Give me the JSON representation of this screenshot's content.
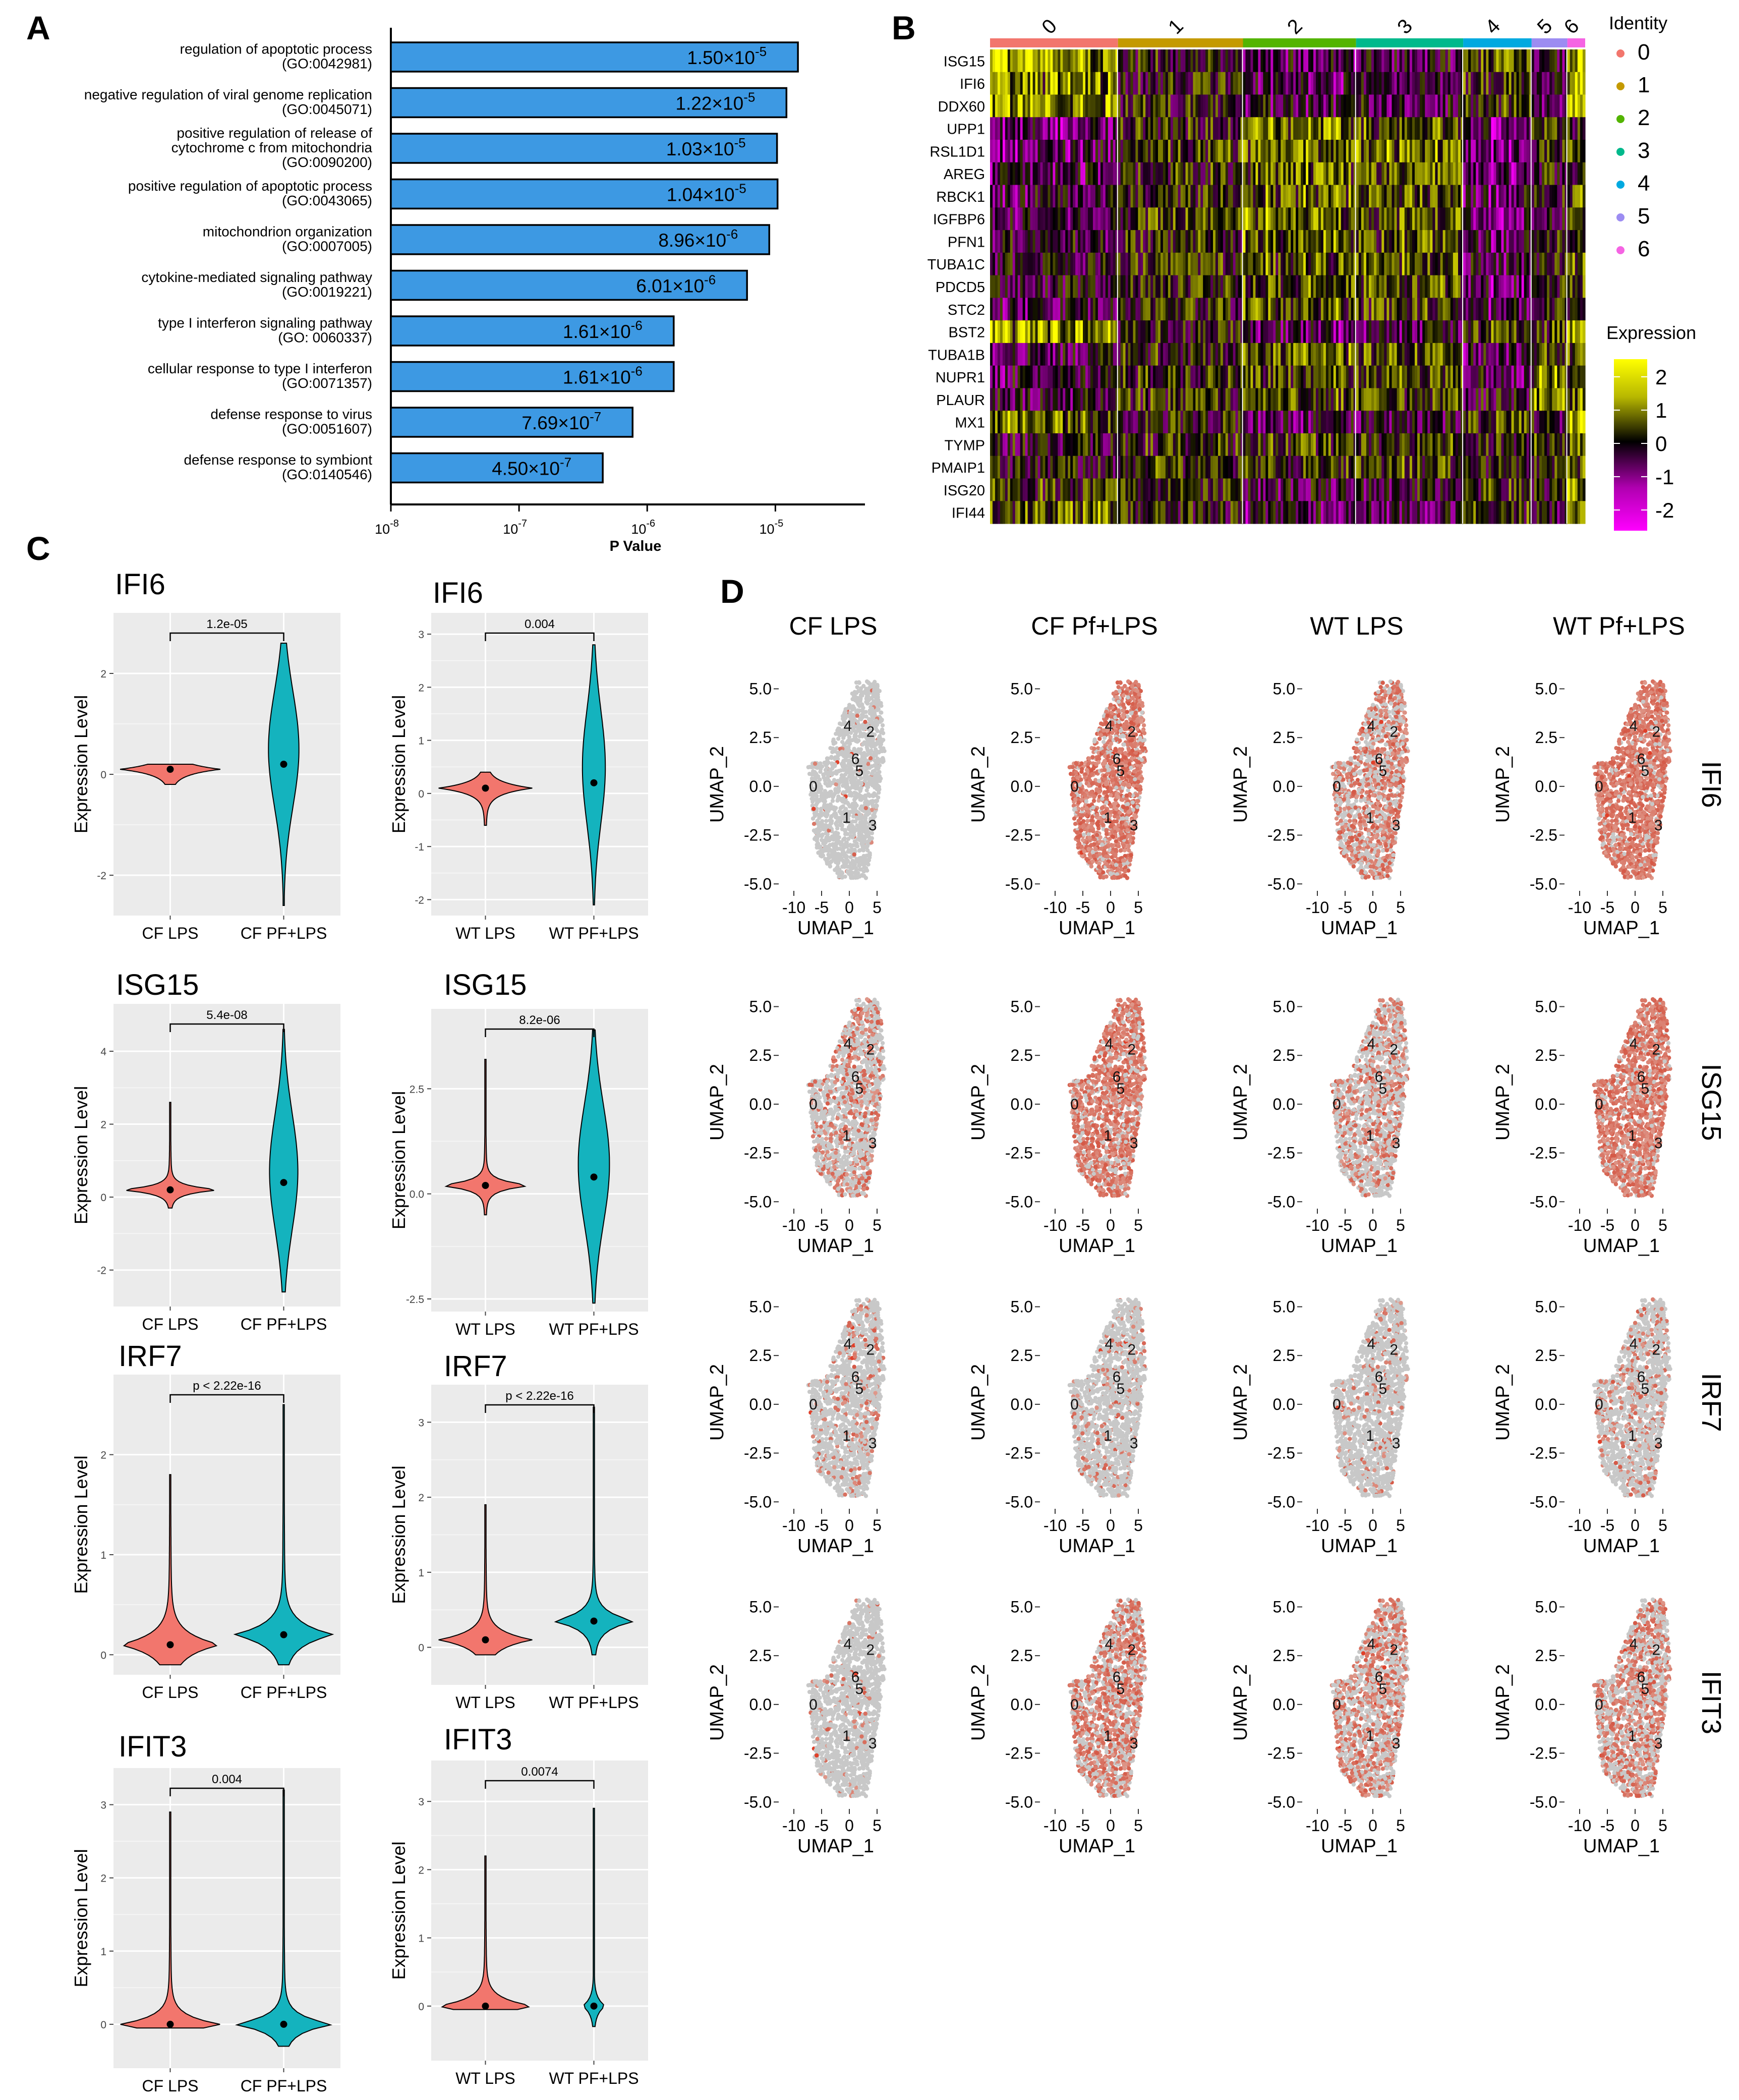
{
  "panel_labels": {
    "a": "A",
    "b": "B",
    "c": "C",
    "d": "D"
  },
  "chart_data": [
    {
      "id": "A",
      "type": "bar",
      "orientation": "horizontal",
      "xscale": "log",
      "xlabel": "P Value",
      "xlim": [
        1e-08,
        5e-05
      ],
      "xticks": [
        {
          "value": 1e-08,
          "base": "10",
          "exp": "-8"
        },
        {
          "value": 1e-07,
          "base": "10",
          "exp": "-7"
        },
        {
          "value": 1e-06,
          "base": "10",
          "exp": "-6"
        },
        {
          "value": 1e-05,
          "base": "10",
          "exp": "-5"
        }
      ],
      "bar_color": "#3d99e3",
      "categories": [
        {
          "lines": [
            "regulation of apoptotic process",
            "(GO:0042981)"
          ]
        },
        {
          "lines": [
            "negative regulation of viral genome replication",
            "(GO:0045071)"
          ]
        },
        {
          "lines": [
            "positive regulation of release of",
            "cytochrome c from mitochondria",
            "(GO:0090200)"
          ]
        },
        {
          "lines": [
            "positive regulation of apoptotic process",
            "(GO:0043065)"
          ]
        },
        {
          "lines": [
            "mitochondrion organization",
            "(GO:0007005)"
          ]
        },
        {
          "lines": [
            "cytokine-mediated signaling pathway",
            "(GO:0019221)"
          ]
        },
        {
          "lines": [
            "type I interferon signaling pathway",
            "(GO: 0060337)"
          ]
        },
        {
          "lines": [
            "cellular response to type I interferon",
            "(GO:0071357)"
          ]
        },
        {
          "lines": [
            "defense response to virus",
            "(GO:0051607)"
          ]
        },
        {
          "lines": [
            "defense response to symbiont",
            "(GO:0140546)"
          ]
        }
      ],
      "values": [
        1.5e-05,
        1.22e-05,
        1.03e-05,
        1.04e-05,
        8.96e-06,
        6.01e-06,
        1.61e-06,
        1.61e-06,
        7.69e-07,
        4.5e-07
      ],
      "value_labels": [
        {
          "mant": "1.50×10",
          "exp": "-5"
        },
        {
          "mant": "1.22×10",
          "exp": "-5"
        },
        {
          "mant": "1.03×10",
          "exp": "-5"
        },
        {
          "mant": "1.04×10",
          "exp": "-5"
        },
        {
          "mant": "8.96×10",
          "exp": "-6"
        },
        {
          "mant": "6.01×10",
          "exp": "-6"
        },
        {
          "mant": "1.61×10",
          "exp": "-6"
        },
        {
          "mant": "1.61×10",
          "exp": "-6"
        },
        {
          "mant": "7.69×10",
          "exp": "-7"
        },
        {
          "mant": "4.50×10",
          "exp": "-7"
        }
      ]
    },
    {
      "id": "B",
      "type": "heatmap",
      "genes": [
        "ISG15",
        "IFI6",
        "DDX60",
        "UPP1",
        "RSL1D1",
        "AREG",
        "RBCK1",
        "IGFBP6",
        "PFN1",
        "TUBA1C",
        "PDCD5",
        "STC2",
        "BST2",
        "TUBA1B",
        "NUPR1",
        "PLAUR",
        "MX1",
        "TYMP",
        "PMAIP1",
        "ISG20",
        "IFI44"
      ],
      "clusters": [
        {
          "label": "0",
          "color": "#f2766d",
          "fraction": 0.215
        },
        {
          "label": "1",
          "color": "#c49a00",
          "fraction": 0.21
        },
        {
          "label": "2",
          "color": "#53b400",
          "fraction": 0.19
        },
        {
          "label": "3",
          "color": "#00b98c",
          "fraction": 0.18
        },
        {
          "label": "4",
          "color": "#00a9e0",
          "fraction": 0.115
        },
        {
          "label": "5",
          "color": "#9c8cf2",
          "fraction": 0.06
        },
        {
          "label": "6",
          "color": "#f564e3",
          "fraction": 0.03
        }
      ],
      "cluster_tendency": [
        [
          1.1,
          0.9,
          0.9,
          -0.7,
          -0.6,
          -0.5,
          -0.4,
          -0.5,
          -0.3,
          -0.3,
          -0.3,
          -0.5,
          1.0,
          -0.3,
          -0.4,
          -0.3,
          0.8,
          -0.2,
          -0.1,
          0.3,
          0.6
        ],
        [
          0.1,
          0.0,
          0.1,
          0.2,
          0.3,
          0.2,
          0.2,
          0.3,
          0.2,
          0.2,
          0.3,
          0.1,
          0.1,
          0.2,
          0.2,
          0.2,
          0.0,
          0.2,
          0.3,
          0.1,
          0.0
        ],
        [
          -0.5,
          -0.6,
          -0.4,
          0.8,
          0.7,
          0.7,
          0.6,
          0.7,
          0.6,
          0.5,
          0.5,
          0.6,
          -0.6,
          0.6,
          0.4,
          0.4,
          -0.5,
          0.3,
          0.3,
          -0.4,
          -0.5
        ],
        [
          -0.3,
          -0.4,
          -0.3,
          0.5,
          0.6,
          0.5,
          0.5,
          0.5,
          0.5,
          0.5,
          0.5,
          0.4,
          -0.4,
          0.5,
          0.4,
          0.4,
          -0.4,
          0.3,
          0.3,
          -0.3,
          -0.4
        ],
        [
          0.5,
          0.2,
          0.3,
          -0.8,
          -0.7,
          -0.7,
          -0.6,
          -0.7,
          -0.5,
          -0.5,
          -0.6,
          -0.6,
          0.4,
          -0.5,
          -0.4,
          -0.2,
          0.4,
          0.1,
          0.0,
          0.2,
          0.3
        ],
        [
          -0.3,
          -0.4,
          -0.3,
          0.2,
          0.1,
          0.0,
          0.1,
          -0.1,
          0.2,
          0.1,
          0.0,
          -0.1,
          0.3,
          0.2,
          0.8,
          0.6,
          -0.3,
          0.4,
          0.2,
          0.0,
          -0.3
        ],
        [
          1.6,
          1.6,
          1.3,
          -0.2,
          0.3,
          0.2,
          0.5,
          0.1,
          0.6,
          0.6,
          0.5,
          0.4,
          1.6,
          0.6,
          0.8,
          1.0,
          1.5,
          1.2,
          0.9,
          1.4,
          1.5
        ]
      ],
      "identity_title": "Identity",
      "expression_title": "Expression",
      "colorbar_ticks": [
        "2",
        "1",
        "0",
        "-1",
        "-2"
      ]
    },
    {
      "id": "C",
      "type": "violin",
      "ylabel": "Expression Level",
      "colors": {
        "lps": "#f2766d",
        "pf": "#14b3be"
      },
      "panels": [
        {
          "gene": "IFI6",
          "pval": "1.2e-05",
          "groups": [
            "CF LPS",
            "CF PF+LPS"
          ],
          "ylim": [
            -2.8,
            3.2
          ],
          "yticks": [
            "2",
            "0",
            "-2"
          ],
          "ytick_values": [
            2,
            0,
            -2
          ],
          "lps": {
            "min": -0.2,
            "max": 0.2,
            "width": 0.92,
            "mean": 0.1,
            "skew": 0.0
          },
          "pf": {
            "min": -2.6,
            "max": 2.6,
            "width": 0.28,
            "mean": 0.2,
            "skew": 0.6
          }
        },
        {
          "gene": "IFI6",
          "pval": "0.004",
          "groups": [
            "WT LPS",
            "WT PF+LPS"
          ],
          "ylim": [
            -2.3,
            3.4
          ],
          "yticks": [
            "3",
            "2",
            "1",
            "0",
            "-1",
            "-2"
          ],
          "ytick_values": [
            3,
            2,
            1,
            0,
            -1,
            -2
          ],
          "lps": {
            "min": -0.6,
            "max": 0.4,
            "width": 0.9,
            "mean": 0.1,
            "skew": 0.0
          },
          "pf": {
            "min": -2.1,
            "max": 2.8,
            "width": 0.22,
            "mean": 0.2,
            "skew": 0.5
          }
        },
        {
          "gene": "ISG15",
          "pval": "5.4e-08",
          "groups": [
            "CF LPS",
            "CF PF+LPS"
          ],
          "ylim": [
            -3.0,
            5.3
          ],
          "yticks": [
            "4",
            "2",
            "0",
            "-2"
          ],
          "ytick_values": [
            4,
            2,
            0,
            -2
          ],
          "lps": {
            "min": -0.3,
            "max": 2.6,
            "width": 0.92,
            "mean": 0.2,
            "skew": 0.0
          },
          "pf": {
            "min": -2.6,
            "max": 4.6,
            "width": 0.26,
            "mean": 0.4,
            "skew": 0.5
          }
        },
        {
          "gene": "ISG15",
          "pval": "8.2e-06",
          "groups": [
            "WT LPS",
            "WT PF+LPS"
          ],
          "ylim": [
            -2.8,
            4.4
          ],
          "yticks": [
            "2.5",
            "0.0",
            "-2.5"
          ],
          "ytick_values": [
            2.5,
            0,
            -2.5
          ],
          "lps": {
            "min": -0.5,
            "max": 3.2,
            "width": 0.9,
            "mean": 0.2,
            "skew": 0.0
          },
          "pf": {
            "min": -2.6,
            "max": 3.9,
            "width": 0.3,
            "mean": 0.4,
            "skew": 0.4
          }
        },
        {
          "gene": "IRF7",
          "pval": "p < 2.22e-16",
          "groups": [
            "CF LPS",
            "CF PF+LPS"
          ],
          "ylim": [
            -0.2,
            2.8
          ],
          "yticks": [
            "2",
            "1",
            "0"
          ],
          "ytick_values": [
            2,
            1,
            0
          ],
          "lps": {
            "min": -0.1,
            "max": 1.8,
            "width": 0.92,
            "mean": 0.1,
            "skew": 0.0
          },
          "pf": {
            "min": -0.1,
            "max": 2.5,
            "width": 0.92,
            "mean": 0.2,
            "skew": 0.0
          }
        },
        {
          "gene": "IRF7",
          "pval": "p < 2.22e-16",
          "groups": [
            "WT LPS",
            "WT PF+LPS"
          ],
          "ylim": [
            -0.5,
            3.5
          ],
          "yticks": [
            "3",
            "2",
            "1",
            "0"
          ],
          "ytick_values": [
            3,
            2,
            1,
            0
          ],
          "lps": {
            "min": -0.1,
            "max": 1.9,
            "width": 0.9,
            "mean": 0.1,
            "skew": 0.0
          },
          "pf": {
            "min": -0.1,
            "max": 3.2,
            "width": 0.8,
            "mean": 0.35,
            "skew": 0.0
          }
        },
        {
          "gene": "IFIT3",
          "pval": "0.004",
          "groups": [
            "CF LPS",
            "CF PF+LPS"
          ],
          "ylim": [
            -0.6,
            3.5
          ],
          "yticks": [
            "3",
            "2",
            "1",
            "0"
          ],
          "ytick_values": [
            3,
            2,
            1,
            0
          ],
          "lps": {
            "min": -0.05,
            "max": 2.9,
            "width": 0.92,
            "mean": 0.0,
            "skew": 0.0
          },
          "pf": {
            "min": -0.3,
            "max": 3.2,
            "width": 0.92,
            "mean": 0.0,
            "skew": 0.0
          }
        },
        {
          "gene": "IFIT3",
          "pval": "0.0074",
          "groups": [
            "WT LPS",
            "WT PF+LPS"
          ],
          "ylim": [
            -0.8,
            3.6
          ],
          "yticks": [
            "3",
            "2",
            "1",
            "0"
          ],
          "ytick_values": [
            3,
            2,
            1,
            0
          ],
          "lps": {
            "min": -0.05,
            "max": 2.2,
            "width": 0.92,
            "mean": 0.0,
            "skew": 0.0
          },
          "pf": {
            "min": -0.3,
            "max": 2.9,
            "width": 0.22,
            "mean": 0.0,
            "skew": 0.0
          }
        }
      ]
    },
    {
      "id": "D",
      "type": "scatter",
      "subtype": "umap-feature-plot",
      "xlabel": "UMAP_1",
      "ylabel": "UMAP_2",
      "xlim": [
        -12,
        8
      ],
      "ylim": [
        -5.2,
        5.4
      ],
      "xticks": [
        "-10",
        "-5",
        "0",
        "5"
      ],
      "xtick_values": [
        -10,
        -5,
        0,
        5
      ],
      "yticks": [
        "5.0",
        "2.5",
        "0.0",
        "-2.5",
        "-5.0"
      ],
      "ytick_values": [
        5.0,
        2.5,
        0.0,
        -2.5,
        -5.0
      ],
      "conditions": [
        "CF LPS",
        "CF Pf+LPS",
        "WT LPS",
        "WT Pf+LPS"
      ],
      "genes": [
        "IFI6",
        "ISG15",
        "IRF7",
        "IFIT3"
      ],
      "cluster_labels": [
        {
          "label": "0",
          "x": -6.5,
          "y": 0.0
        },
        {
          "label": "1",
          "x": -0.5,
          "y": -1.6
        },
        {
          "label": "2",
          "x": 3.8,
          "y": 2.8
        },
        {
          "label": "3",
          "x": 4.2,
          "y": -2.0
        },
        {
          "label": "4",
          "x": -0.3,
          "y": 3.1
        },
        {
          "label": "5",
          "x": 1.8,
          "y": 0.8
        },
        {
          "label": "6",
          "x": 1.1,
          "y": 1.4
        }
      ],
      "expressing_fraction": [
        [
          0.03,
          0.85,
          0.55,
          0.9
        ],
        [
          0.35,
          0.8,
          0.4,
          0.85
        ],
        [
          0.15,
          0.15,
          0.12,
          0.22
        ],
        [
          0.05,
          0.6,
          0.5,
          0.55
        ]
      ]
    }
  ]
}
